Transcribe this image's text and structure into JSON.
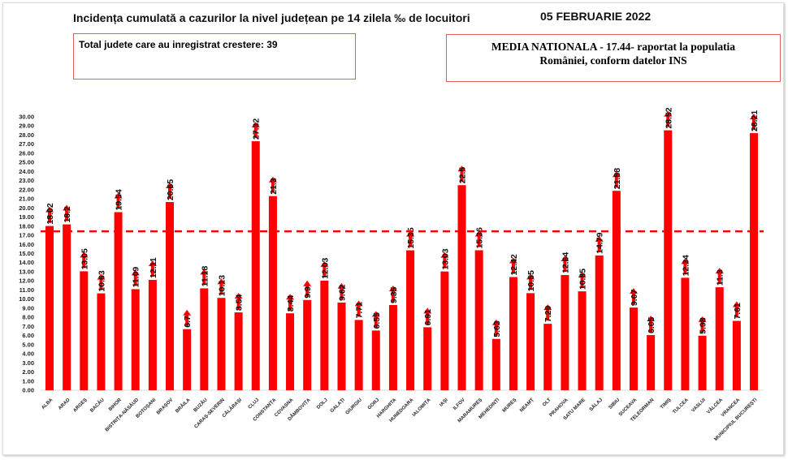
{
  "header": {
    "title": "Incidența cumulată a cazurilor la nivel județean pe 14 zilela ‰ de locuitori",
    "date": "05 FEBRUARIE 2022",
    "total_box": "Total judete care au inregistrat crestere: 39",
    "media_line1": "MEDIA NATIONALA - 17.44-  raportat la populatia",
    "media_line2": "României, conform datelor INS"
  },
  "chart_data": {
    "type": "bar",
    "title": "Incidența cumulată a cazurilor la nivel județean pe 14 zilela ‰ de locuitori",
    "xlabel": "",
    "ylabel": "",
    "ylim": [
      0,
      30
    ],
    "ytick_step": 1,
    "grid": false,
    "bar_color": "#ff0000",
    "reference_line": {
      "value": 17.44,
      "style": "dashed",
      "color": "#ff0000"
    },
    "arrows": "up",
    "categories": [
      "ALBA",
      "ARAD",
      "ARGEȘ",
      "BACĂU",
      "BIHOR",
      "BISTRIȚA-NĂSĂUD",
      "BOTOȘANI",
      "BRAȘOV",
      "BRĂILA",
      "BUZĂU",
      "CARAȘ-SEVERIN",
      "CĂLĂRAȘI",
      "CLUJ",
      "CONSTANȚA",
      "COVASNA",
      "DÂMBOVIȚA",
      "DOLJ",
      "GALAȚI",
      "GIURGIU",
      "GORJ",
      "HARGHITA",
      "HUNEDOARA",
      "IALOMIȚA",
      "IAȘI",
      "ILFOV",
      "MARAMUREȘ",
      "MEHEDINȚI",
      "MUREȘ",
      "NEAMȚ",
      "OLT",
      "PRAHOVA",
      "SATU MARE",
      "SĂLAJ",
      "SIBIU",
      "SUCEAVA",
      "TELEORMAN",
      "TIMIȘ",
      "TULCEA",
      "VASLUI",
      "VÂLCEA",
      "VRANCEA",
      "MUNICIPIUL BUCUREȘTI"
    ],
    "values": [
      18.02,
      18.2,
      13.05,
      10.63,
      19.54,
      11.09,
      12.11,
      20.65,
      6.7,
      11.18,
      10.13,
      8.54,
      27.32,
      21.3,
      8.44,
      9.9,
      12.03,
      9.62,
      7.71,
      6.55,
      9.35,
      15.35,
      6.91,
      13.03,
      22.5,
      15.36,
      5.63,
      12.42,
      10.65,
      7.29,
      12.64,
      10.85,
      14.79,
      21.88,
      9.07,
      6.05,
      28.52,
      12.34,
      5.98,
      11.3,
      7.61,
      28.21
    ]
  }
}
